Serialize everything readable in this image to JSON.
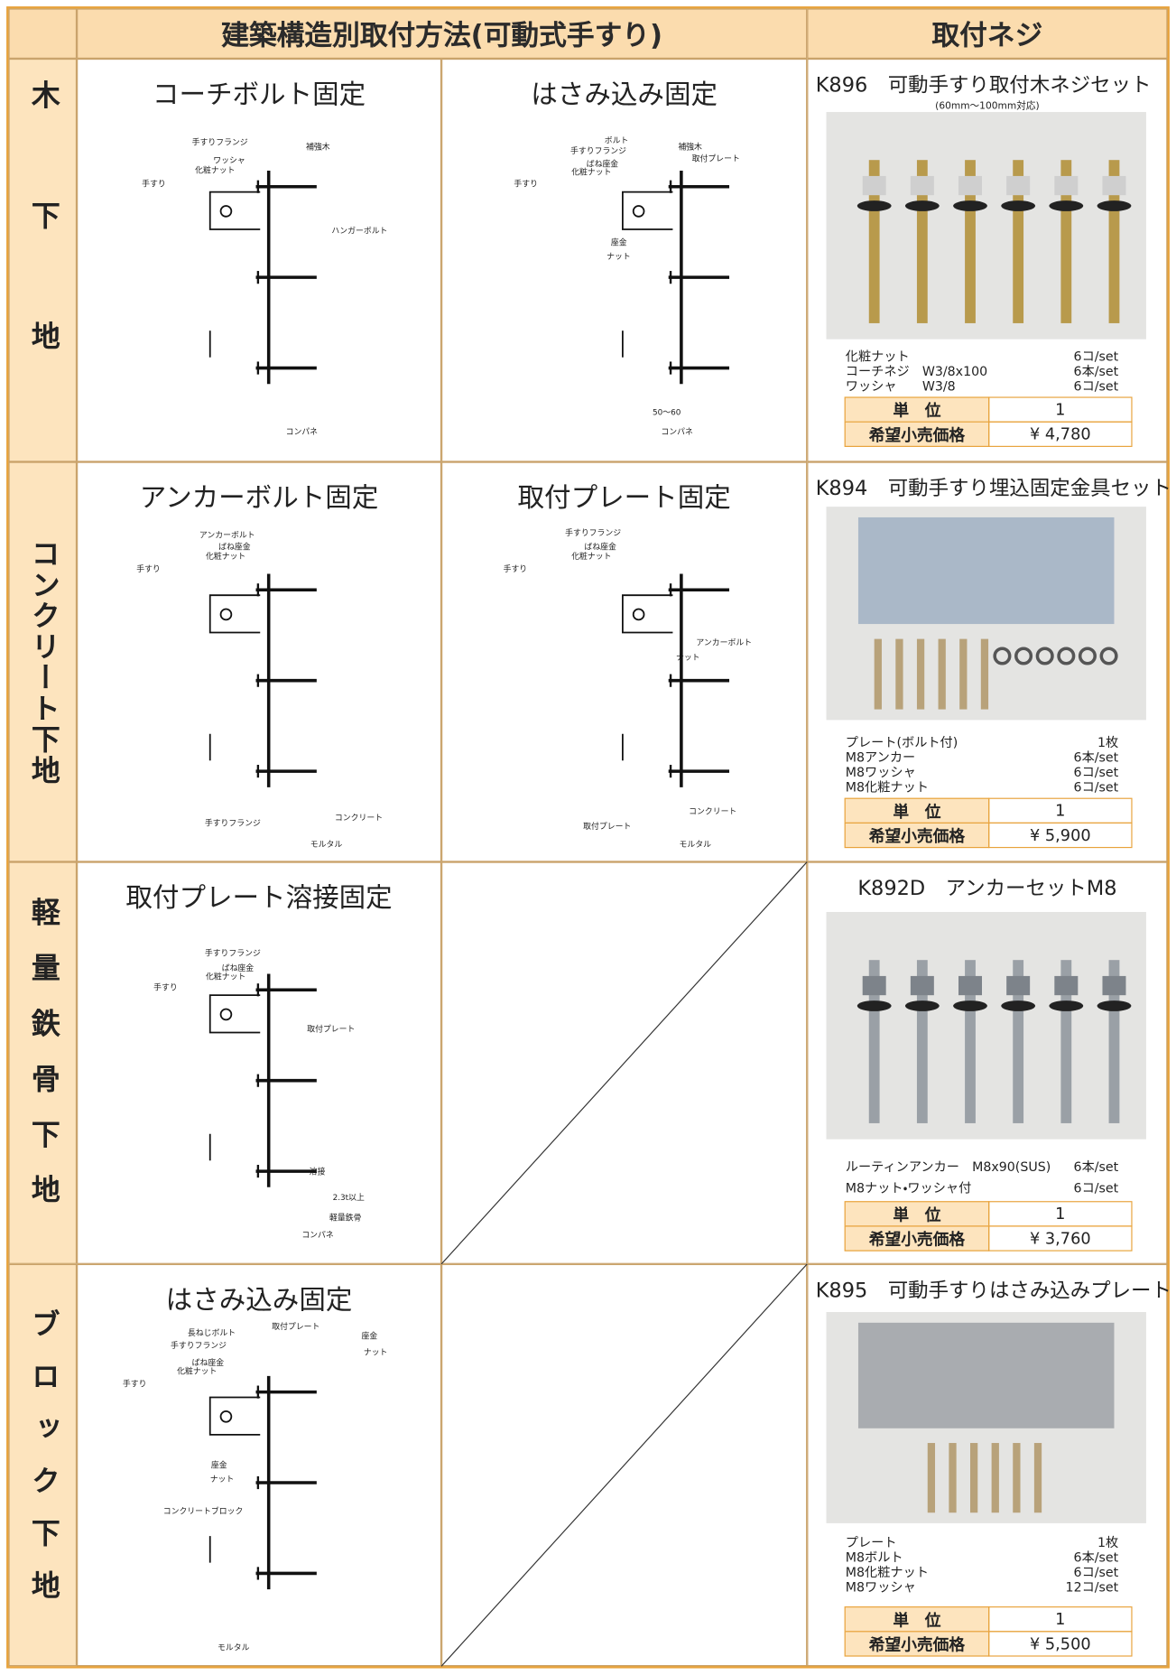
{
  "header": {
    "method_title": "建築構造別取付方法(可動式手すり)",
    "screw_title": "取付ネジ"
  },
  "rows": [
    {
      "label": "木下地",
      "methods": [
        {
          "title": "コーチボルト固定",
          "labels": [
            "手すりフランジ",
            "ワッシャ",
            "化粧ナット",
            "補強木",
            "手すり",
            "ハンガーボルト",
            "コンパネ"
          ]
        },
        {
          "title": "はさみ込み固定",
          "labels": [
            "ボルト",
            "手すりフランジ",
            "ばね座金",
            "化粧ナット",
            "補強木",
            "取付プレート",
            "手すり",
            "座金",
            "ナット",
            "50〜60",
            "コンパネ"
          ]
        }
      ],
      "product": {
        "title": "K896　可動手すり取付木ネジセット",
        "note": "(60mm〜100mm対応)",
        "items": [
          {
            "name": "化粧ナット",
            "qty": "6コ/set"
          },
          {
            "name": "コーチネジ　W3/8x100",
            "qty": "6本/set"
          },
          {
            "name": "ワッシャ　　W3/8",
            "qty": "6コ/set"
          }
        ],
        "unit_label": "単　位",
        "unit": "1",
        "price_label": "希望小売価格",
        "price": "¥ 4,780"
      }
    },
    {
      "label": "コンクリート下地",
      "methods": [
        {
          "title": "アンカーボルト固定",
          "labels": [
            "アンカーボルト",
            "ばね座金",
            "化粧ナット",
            "手すり",
            "手すりフランジ",
            "コンクリート",
            "モルタル"
          ]
        },
        {
          "title": "取付プレート固定",
          "labels": [
            "手すりフランジ",
            "ばね座金",
            "化粧ナット",
            "手すり",
            "アンカーボルト",
            "ナット",
            "取付プレート",
            "コンクリート",
            "モルタル"
          ]
        }
      ],
      "product": {
        "title": "K894　可動手すり埋込固定金具セット",
        "items": [
          {
            "name": "プレート(ボルト付)",
            "qty": "1枚"
          },
          {
            "name": "M8アンカー",
            "qty": "6本/set"
          },
          {
            "name": "M8ワッシャ",
            "qty": "6コ/set"
          },
          {
            "name": "M8化粧ナット",
            "qty": "6コ/set"
          }
        ],
        "unit_label": "単　位",
        "unit": "1",
        "price_label": "希望小売価格",
        "price": "¥ 5,900"
      }
    },
    {
      "label": "軽量鉄骨下地",
      "methods": [
        {
          "title": "取付プレート溶接固定",
          "labels": [
            "手すりフランジ",
            "ばね座金",
            "化粧ナット",
            "手すり",
            "取付プレート",
            "溶接",
            "2.3t以上",
            "軽量鉄骨",
            "コンパネ"
          ]
        }
      ],
      "product": {
        "title": "K892D　アンカーセットM8",
        "items": [
          {
            "name": "ルーティンアンカー　M8x90(SUS)",
            "qty": "6本/set"
          },
          {
            "name": "M8ナット・ワッシャ付",
            "qty": "6コ/set"
          }
        ],
        "unit_label": "単　位",
        "unit": "1",
        "price_label": "希望小売価格",
        "price": "¥ 3,760"
      }
    },
    {
      "label": "ブロック下地",
      "methods": [
        {
          "title": "はさみ込み固定",
          "labels": [
            "長ねじボルト",
            "取付プレート",
            "手すりフランジ",
            "ばね座金",
            "化粧ナット",
            "座金",
            "ナット",
            "手すり",
            "座金",
            "ナット",
            "コンクリートブロック",
            "モルタル"
          ]
        }
      ],
      "product": {
        "title": "K895　可動手すりはさみ込みプレート",
        "items": [
          {
            "name": "プレート",
            "qty": "1枚"
          },
          {
            "name": "M8ボルト",
            "qty": "6本/set"
          },
          {
            "name": "M8化粧ナット",
            "qty": "6コ/set"
          },
          {
            "name": "M8ワッシャ",
            "qty": "12コ/set"
          }
        ],
        "unit_label": "単　位",
        "unit": "1",
        "price_label": "希望小売価格",
        "price": "¥ 5,500"
      }
    }
  ]
}
